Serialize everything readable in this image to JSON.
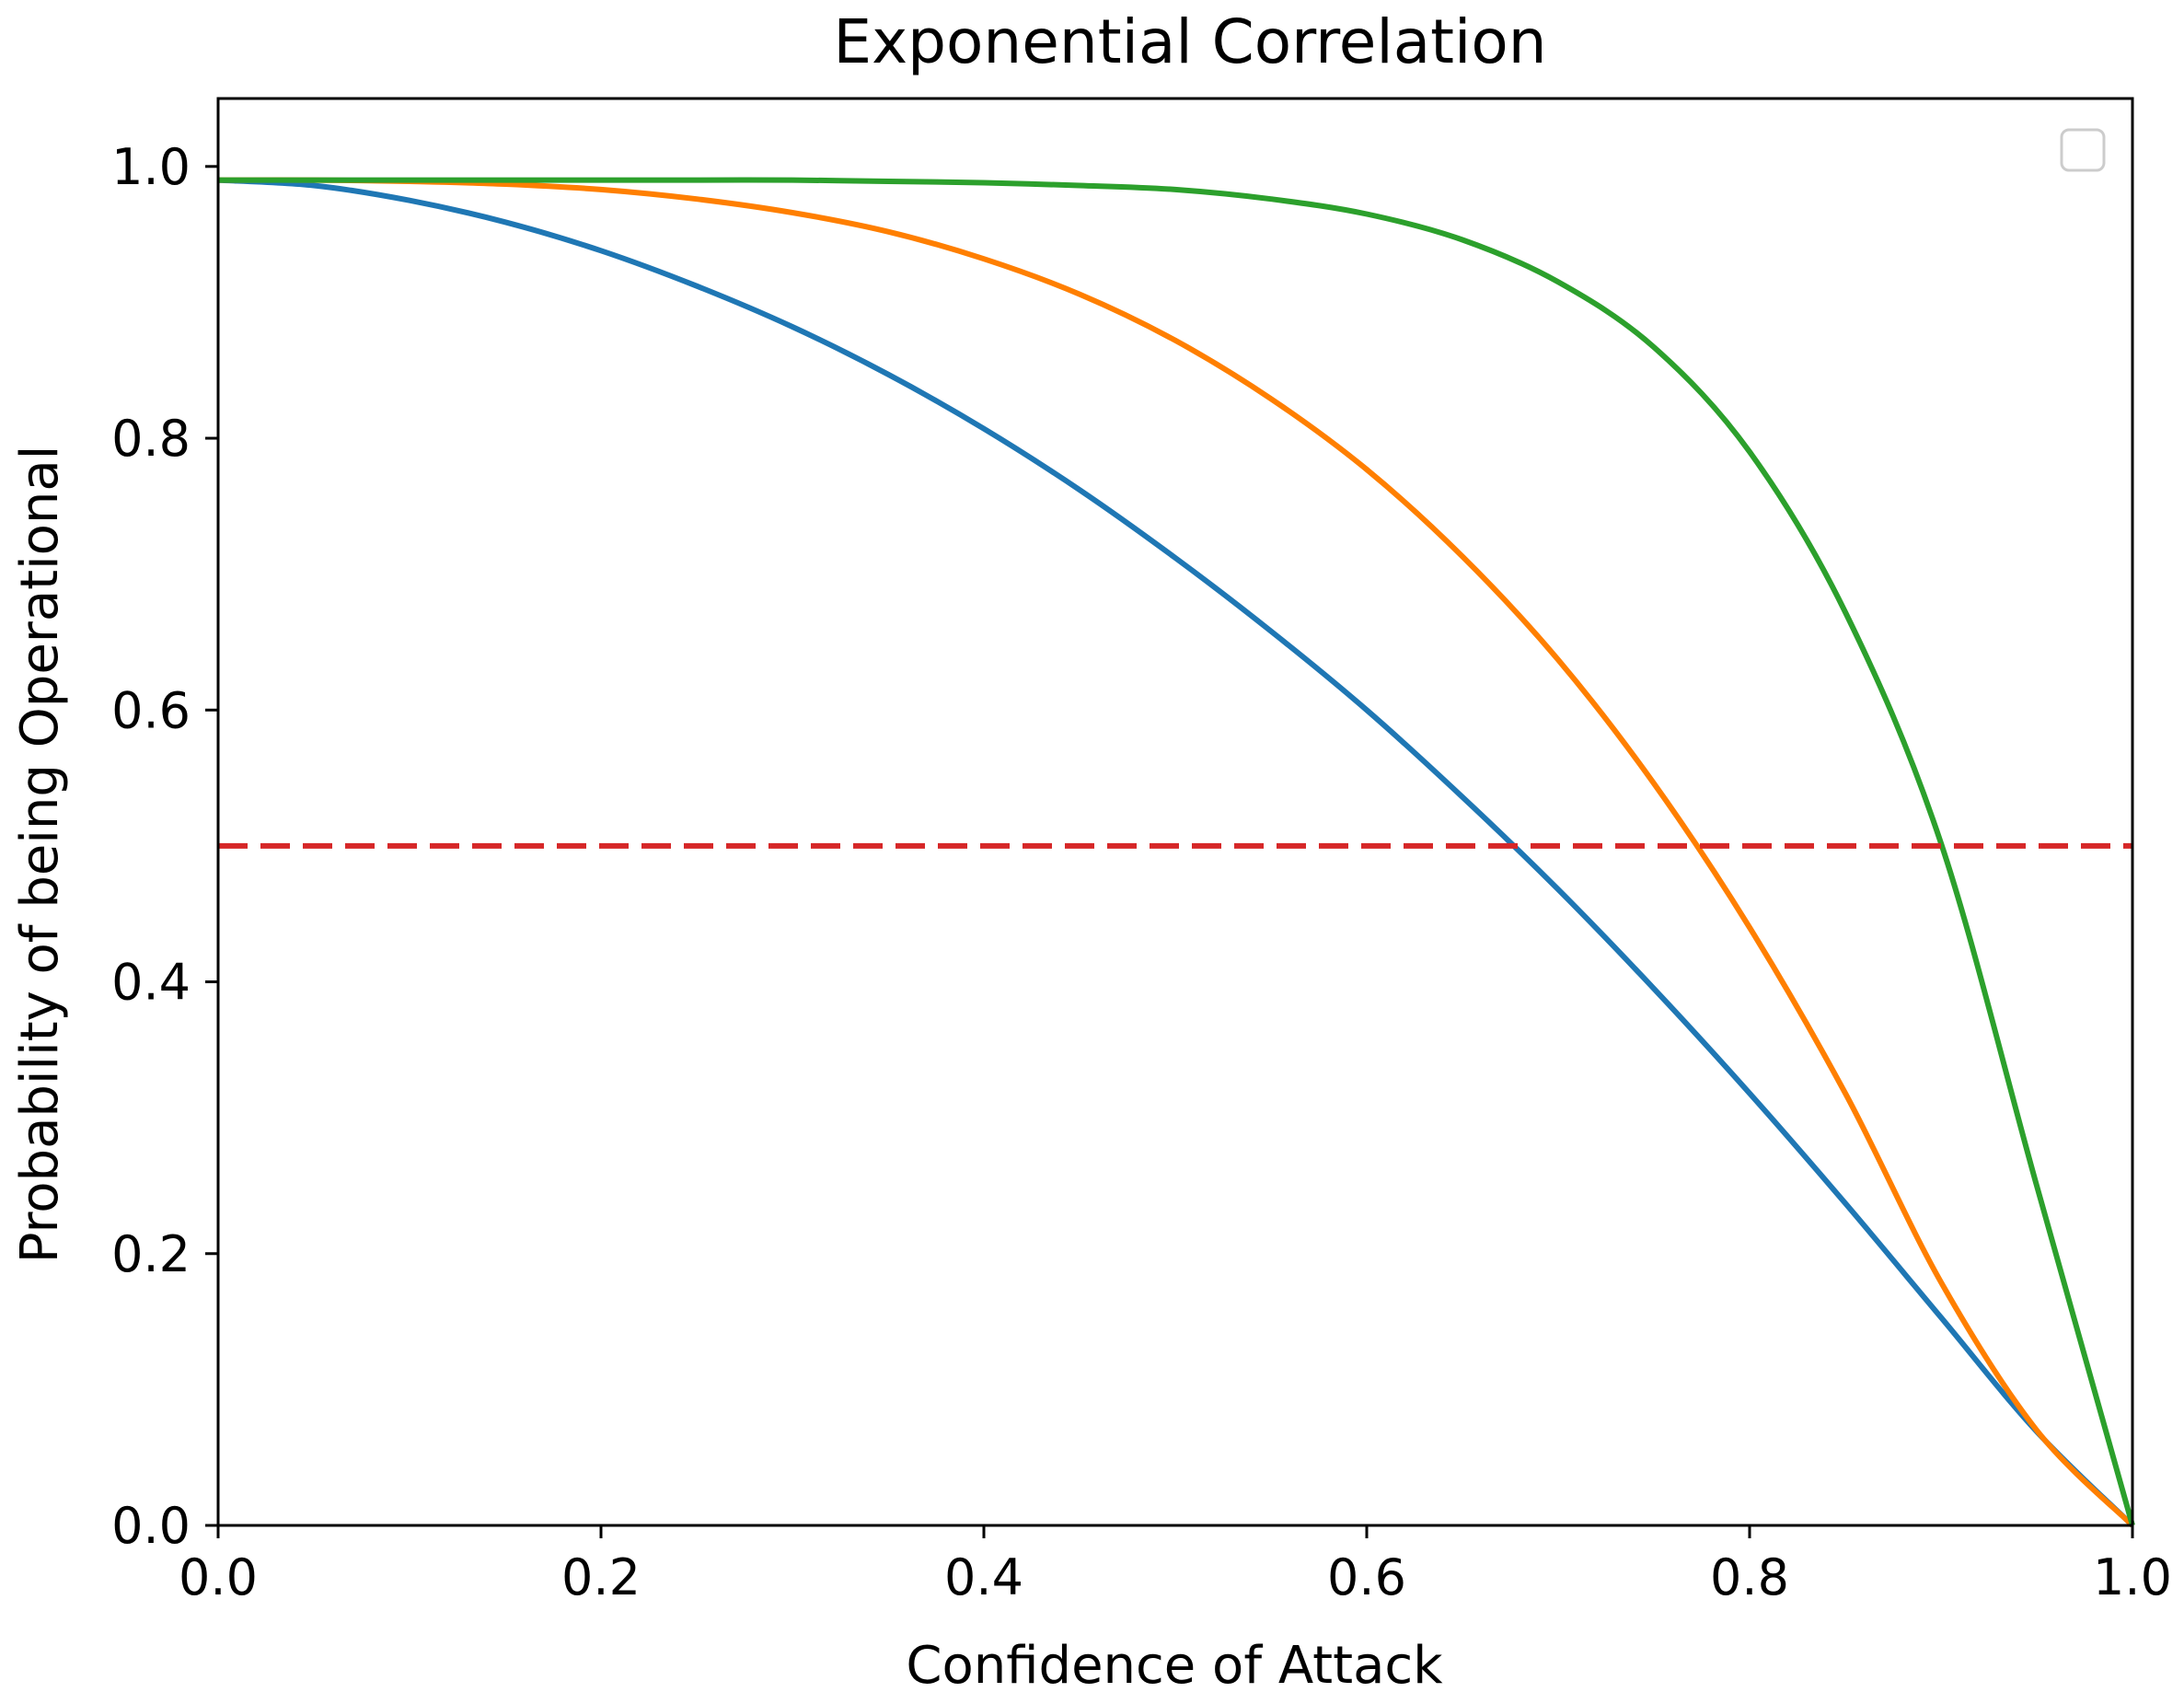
{
  "chart_data": {
    "type": "line",
    "title": "Exponential Correlation",
    "xlabel": "Confidence of Attack",
    "ylabel": "Probability of being Operational",
    "xlim": [
      0.0,
      1.0
    ],
    "ylim": [
      0.0,
      1.05
    ],
    "xticks": [
      "0.0",
      "0.2",
      "0.4",
      "0.6",
      "0.8",
      "1.0"
    ],
    "yticks": [
      "0.0",
      "0.2",
      "0.4",
      "0.6",
      "0.8",
      "1.0"
    ],
    "grid": false,
    "legend": {
      "placement": "top-right",
      "entries": []
    },
    "x": [
      0.0,
      0.05,
      0.1,
      0.15,
      0.2,
      0.25,
      0.3,
      0.35,
      0.4,
      0.45,
      0.5,
      0.55,
      0.6,
      0.65,
      0.7,
      0.75,
      0.8,
      0.85,
      0.9,
      0.95,
      1.0
    ],
    "series": [
      {
        "name": "series-blue",
        "color": "#1f77b4",
        "values": [
          0.99,
          0.986,
          0.975,
          0.959,
          0.938,
          0.912,
          0.882,
          0.847,
          0.807,
          0.762,
          0.712,
          0.658,
          0.6,
          0.536,
          0.468,
          0.395,
          0.318,
          0.237,
          0.153,
          0.069,
          0.0
        ]
      },
      {
        "name": "series-orange",
        "color": "#ff7f00",
        "values": [
          0.99,
          0.99,
          0.989,
          0.987,
          0.983,
          0.976,
          0.966,
          0.952,
          0.932,
          0.906,
          0.872,
          0.829,
          0.777,
          0.713,
          0.637,
          0.546,
          0.44,
          0.318,
          0.179,
          0.07,
          0.0
        ]
      },
      {
        "name": "series-green",
        "color": "#2ca02c",
        "values": [
          0.99,
          0.99,
          0.99,
          0.99,
          0.99,
          0.99,
          0.99,
          0.989,
          0.988,
          0.986,
          0.983,
          0.976,
          0.965,
          0.946,
          0.915,
          0.867,
          0.79,
          0.672,
          0.502,
          0.25,
          0.0
        ]
      }
    ],
    "reference_line": {
      "name": "threshold",
      "y": 0.5,
      "color": "#d62728",
      "style": "dashed"
    }
  }
}
